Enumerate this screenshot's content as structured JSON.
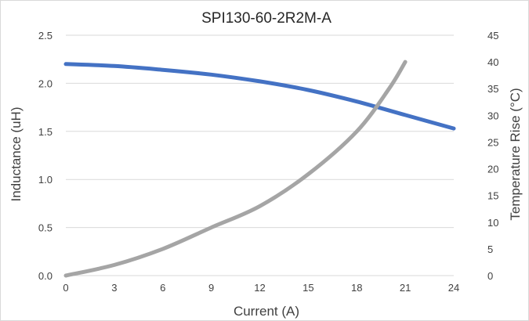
{
  "chart_data": {
    "type": "line",
    "title": "SPI130-60-2R2M-A",
    "xlabel": "Current (A)",
    "ylabel": "Inductance (uH)",
    "y2label": "Temperature Rise (°C)",
    "xlim": [
      0,
      24
    ],
    "ylim": [
      0,
      2.5
    ],
    "y2lim": [
      0,
      45
    ],
    "x_ticks": [
      "0",
      "3",
      "6",
      "9",
      "12",
      "15",
      "18",
      "21",
      "24"
    ],
    "y_ticks": [
      "0.0",
      "0.5",
      "1.0",
      "1.5",
      "2.0",
      "2.5"
    ],
    "y2_ticks": [
      "0",
      "5",
      "10",
      "15",
      "20",
      "25",
      "30",
      "35",
      "40",
      "45"
    ],
    "grid": true,
    "series": [
      {
        "axis": "left",
        "color": "#4472c4",
        "x": [
          0,
          3,
          6,
          9,
          12,
          15,
          18,
          21,
          24
        ],
        "y": [
          2.2,
          2.18,
          2.14,
          2.09,
          2.02,
          1.93,
          1.81,
          1.67,
          1.53
        ]
      },
      {
        "axis": "right",
        "color": "#a5a5a5",
        "x": [
          0,
          3,
          6,
          9,
          12,
          15,
          18,
          20,
          21
        ],
        "y": [
          0,
          2,
          5,
          9,
          13,
          19,
          27,
          35,
          40
        ]
      }
    ]
  }
}
